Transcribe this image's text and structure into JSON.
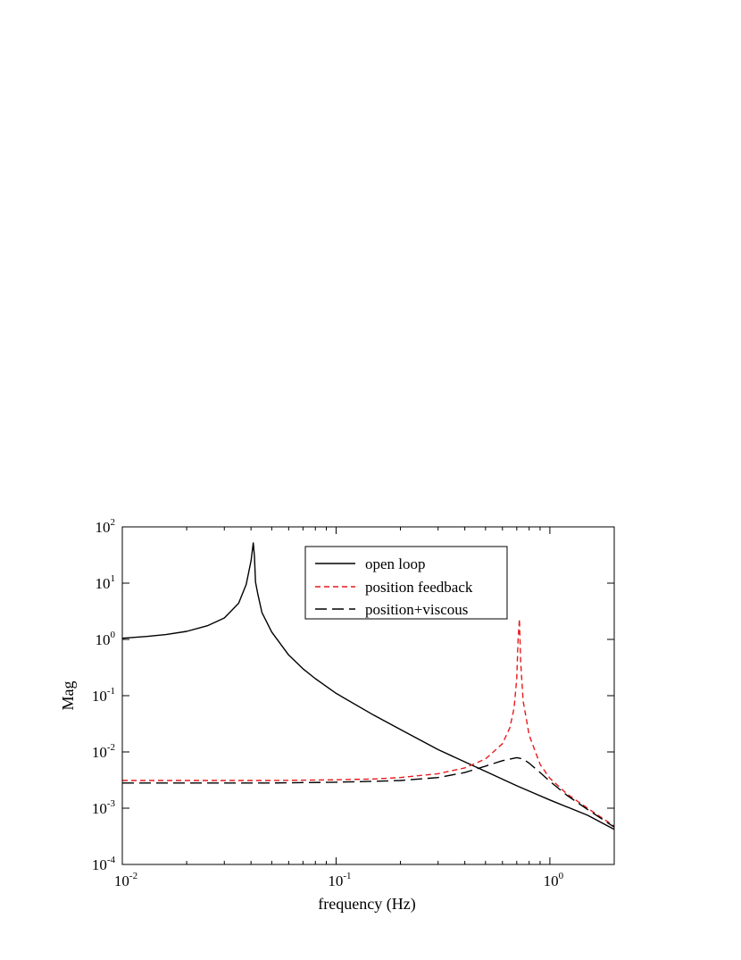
{
  "chart_data": {
    "type": "line",
    "xlabel": "frequency (Hz)",
    "ylabel": "Mag",
    "xscale": "log",
    "yscale": "log",
    "xlim": [
      0.01,
      2
    ],
    "ylim": [
      0.0001,
      100
    ],
    "grid": false,
    "legend_position": "top-right",
    "x_ticks": [
      {
        "value": 0.01,
        "base": "10",
        "exp": "-2"
      },
      {
        "value": 0.1,
        "base": "10",
        "exp": "-1"
      },
      {
        "value": 1,
        "base": "10",
        "exp": "0"
      }
    ],
    "y_ticks": [
      {
        "value": 100,
        "base": "10",
        "exp": "2"
      },
      {
        "value": 10,
        "base": "10",
        "exp": "1"
      },
      {
        "value": 1,
        "base": "10",
        "exp": "0"
      },
      {
        "value": 0.1,
        "base": "10",
        "exp": "-1"
      },
      {
        "value": 0.01,
        "base": "10",
        "exp": "-2"
      },
      {
        "value": 0.001,
        "base": "10",
        "exp": "-3"
      },
      {
        "value": 0.0001,
        "base": "10",
        "exp": "-4"
      }
    ],
    "series": [
      {
        "name": "open loop",
        "color": "#000000",
        "dash": "solid",
        "x": [
          0.01,
          0.013,
          0.016,
          0.02,
          0.025,
          0.03,
          0.035,
          0.038,
          0.04,
          0.041,
          0.0415,
          0.042,
          0.043,
          0.045,
          0.05,
          0.06,
          0.07,
          0.08,
          0.1,
          0.15,
          0.2,
          0.3,
          0.5,
          0.7,
          1.0,
          1.5,
          2.0
        ],
        "y": [
          1.05,
          1.13,
          1.22,
          1.39,
          1.75,
          2.4,
          4.4,
          9.5,
          25,
          52,
          30,
          10.5,
          6.5,
          3.0,
          1.35,
          0.53,
          0.3,
          0.2,
          0.11,
          0.045,
          0.025,
          0.011,
          0.0045,
          0.0025,
          0.0014,
          0.00075,
          0.00042
        ]
      },
      {
        "name": "position feedback",
        "color": "#e8191c",
        "dash": "short-dash",
        "x": [
          0.01,
          0.03,
          0.05,
          0.1,
          0.15,
          0.2,
          0.3,
          0.4,
          0.5,
          0.6,
          0.65,
          0.68,
          0.7,
          0.71,
          0.72,
          0.73,
          0.75,
          0.8,
          0.9,
          1.0,
          1.2,
          1.5,
          2.0
        ],
        "y": [
          0.0031,
          0.0031,
          0.0031,
          0.0032,
          0.0033,
          0.0035,
          0.0041,
          0.0052,
          0.0075,
          0.014,
          0.027,
          0.06,
          0.2,
          1.0,
          2.3,
          0.4,
          0.08,
          0.02,
          0.006,
          0.0034,
          0.0018,
          0.001,
          0.00048
        ]
      },
      {
        "name": "position+viscous",
        "color": "#000000",
        "dash": "long-dash",
        "x": [
          0.01,
          0.03,
          0.05,
          0.1,
          0.15,
          0.2,
          0.3,
          0.4,
          0.5,
          0.6,
          0.7,
          0.75,
          0.8,
          0.9,
          1.0,
          1.2,
          1.5,
          2.0
        ],
        "y": [
          0.0028,
          0.0028,
          0.0028,
          0.0029,
          0.003,
          0.0031,
          0.0035,
          0.0043,
          0.0056,
          0.007,
          0.0079,
          0.0075,
          0.0063,
          0.0043,
          0.003,
          0.0017,
          0.00095,
          0.00046
        ]
      }
    ]
  }
}
